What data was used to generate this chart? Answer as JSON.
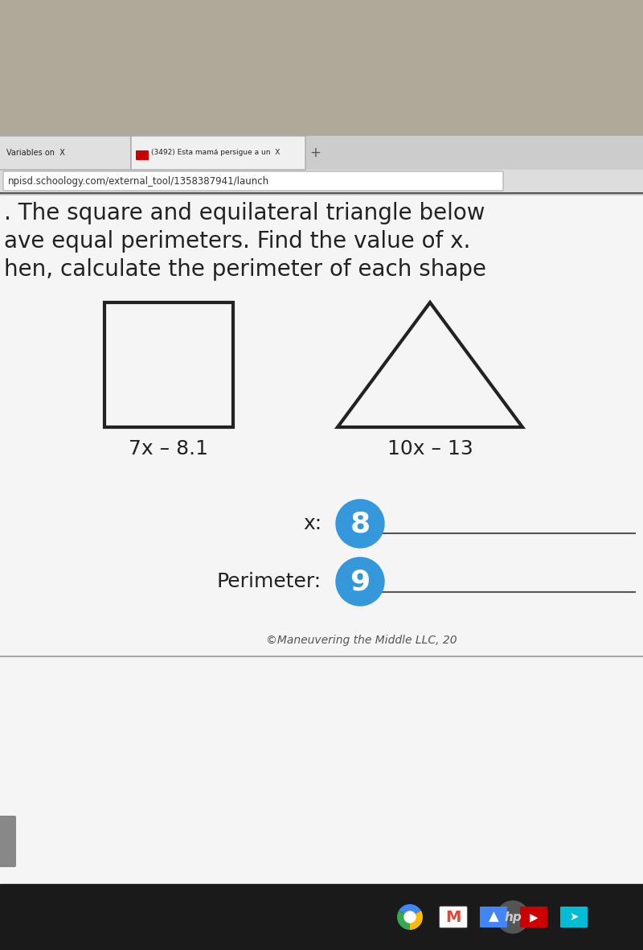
{
  "tab_text1": "Variables on  X",
  "tab_text2": "(3492) Esta mamá persigue a un  X",
  "tab_plus": "+",
  "url_text": "npisd.schoology.com/external_tool/1358387941/launch",
  "title_line1": ". The square and equilateral triangle below",
  "title_line2": "ave equal perimeters. Find the value of x.",
  "title_line3": "hen, calculate the perimeter of each shape",
  "square_label": "7x – 8.1",
  "triangle_label": "10x – 13",
  "x_label": "x:",
  "x_value": "8",
  "perimeter_label": "Perimeter:",
  "perimeter_value": "9",
  "bubble_color": "#3498db",
  "bubble_text_color": "#ffffff",
  "copyright_text": "©Maneuvering the Middle LLC, 20",
  "text_color": "#222222",
  "answer_line_color": "#555555",
  "laptop_bg": "#b0a898",
  "taskbar_bg": "#1a1a1a",
  "content_bg": "#f5f5f5",
  "browser_top_bg": "#3a3a3a",
  "tab_bar_bg": "#cccccc"
}
